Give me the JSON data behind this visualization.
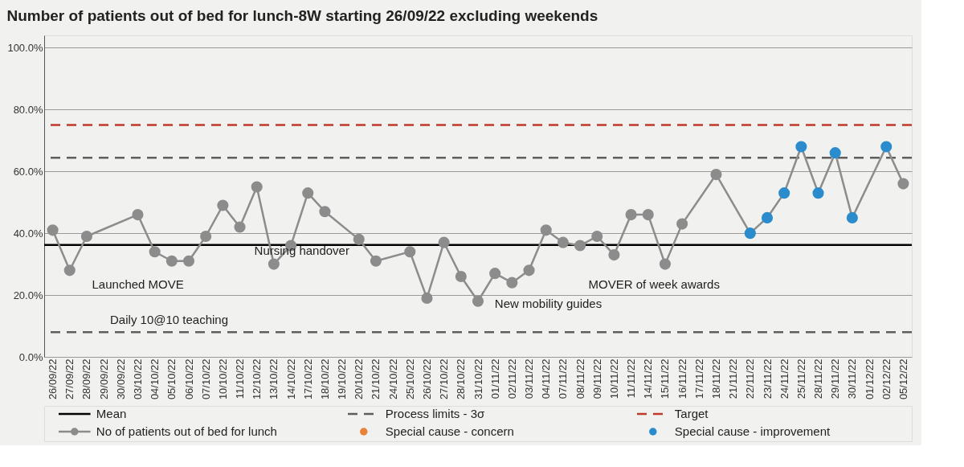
{
  "chart_data": {
    "type": "line",
    "title": "Number of patients out of bed for lunch-8W starting 26/09/22 excluding weekends",
    "categories": [
      "26/09/22",
      "27/09/22",
      "28/09/22",
      "29/09/22",
      "30/09/22",
      "03/10/22",
      "04/10/22",
      "05/10/22",
      "06/10/22",
      "07/10/22",
      "10/10/22",
      "11/10/22",
      "12/10/22",
      "13/10/22",
      "14/10/22",
      "17/10/22",
      "18/10/22",
      "19/10/22",
      "20/10/22",
      "21/10/22",
      "24/10/22",
      "25/10/22",
      "26/10/22",
      "27/10/22",
      "28/10/22",
      "31/10/22",
      "01/11/22",
      "02/11/22",
      "03/11/22",
      "04/11/22",
      "07/11/22",
      "08/11/22",
      "09/11/22",
      "10/11/22",
      "11/11/22",
      "14/11/22",
      "15/11/22",
      "16/11/22",
      "17/11/22",
      "18/11/22",
      "21/11/22",
      "22/11/22",
      "23/11/22",
      "24/11/22",
      "25/11/22",
      "28/11/22",
      "29/11/22",
      "30/11/22",
      "01/12/22",
      "02/12/22",
      "05/12/22"
    ],
    "series": [
      {
        "name": "No of patients out of bed for lunch",
        "color": "#8c8c8c",
        "values": [
          41,
          28,
          39,
          null,
          null,
          46,
          34,
          31,
          31,
          39,
          49,
          42,
          55,
          30,
          36,
          53,
          47,
          null,
          38,
          31,
          null,
          34,
          19,
          37,
          26,
          18,
          27,
          24,
          28,
          41,
          37,
          36,
          39,
          33,
          46,
          46,
          30,
          43,
          null,
          59,
          null,
          40,
          45,
          53,
          68,
          53,
          66,
          45,
          null,
          68,
          56
        ],
        "colors": [
          "#8c8c8c",
          "#8c8c8c",
          "#8c8c8c",
          "#8c8c8c",
          "#8c8c8c",
          "#8c8c8c",
          "#8c8c8c",
          "#8c8c8c",
          "#8c8c8c",
          "#8c8c8c",
          "#8c8c8c",
          "#8c8c8c",
          "#8c8c8c",
          "#8c8c8c",
          "#8c8c8c",
          "#8c8c8c",
          "#8c8c8c",
          "#8c8c8c",
          "#8c8c8c",
          "#8c8c8c",
          "#8c8c8c",
          "#8c8c8c",
          "#8c8c8c",
          "#8c8c8c",
          "#8c8c8c",
          "#8c8c8c",
          "#8c8c8c",
          "#8c8c8c",
          "#8c8c8c",
          "#8c8c8c",
          "#8c8c8c",
          "#8c8c8c",
          "#8c8c8c",
          "#8c8c8c",
          "#8c8c8c",
          "#8c8c8c",
          "#8c8c8c",
          "#8c8c8c",
          "#8c8c8c",
          "#8c8c8c",
          "#8c8c8c",
          "#2a8ccc",
          "#2a8ccc",
          "#2a8ccc",
          "#2a8ccc",
          "#2a8ccc",
          "#2a8ccc",
          "#2a8ccc",
          "#8c8c8c",
          "#2a8ccc",
          "#8c8c8c"
        ]
      },
      {
        "name": "Special cause - concern",
        "type": "scatter",
        "color": "#e8823a",
        "values": [
          null,
          null,
          null,
          null,
          null,
          null,
          null,
          null,
          null,
          null,
          null,
          null,
          null,
          null,
          null,
          null,
          null,
          null,
          null,
          null,
          null,
          null,
          null,
          null,
          null,
          null,
          null,
          null,
          null,
          null,
          null,
          null,
          null,
          null,
          null,
          null,
          null,
          null,
          null,
          null,
          null,
          null,
          null,
          null,
          null,
          null,
          null,
          null,
          null,
          null,
          null
        ]
      },
      {
        "name": "Special cause - improvement",
        "type": "scatter",
        "color": "#2a8ccc",
        "values": [
          null,
          null,
          null,
          null,
          null,
          null,
          null,
          null,
          null,
          null,
          null,
          null,
          null,
          null,
          null,
          null,
          null,
          null,
          null,
          null,
          null,
          null,
          null,
          null,
          null,
          null,
          null,
          null,
          null,
          null,
          null,
          null,
          null,
          null,
          null,
          null,
          null,
          null,
          null,
          null,
          null,
          null,
          null,
          null,
          null,
          null,
          null,
          null,
          null,
          null,
          null
        ]
      }
    ],
    "ref_lines": [
      {
        "axis": "y",
        "value": 36.2,
        "label": "Mean",
        "color": "#000000",
        "line_style": "solid"
      },
      {
        "axis": "y",
        "value": 64.4,
        "label": "Process limits - 3σ",
        "color": "#5e5e5e",
        "line_style": "dashed"
      },
      {
        "axis": "y",
        "value": 8.0,
        "color": "#5e5e5e",
        "line_style": "dashed"
      },
      {
        "axis": "y",
        "value": 75,
        "label": "Target",
        "color": "#c0392b",
        "line_style": "dashed"
      }
    ],
    "annotations": [
      "Launched MOVE",
      "Daily 10@10 teaching",
      "Nursing handover",
      "New mobility guides",
      "MOVER of week awards"
    ],
    "ylim": [
      0,
      104
    ],
    "yticks": [
      {
        "value": 0,
        "label": "0.0%"
      },
      {
        "value": 20,
        "label": "20.0%"
      },
      {
        "value": 40,
        "label": "40.0%"
      },
      {
        "value": 60,
        "label": "60.0%"
      },
      {
        "value": 80,
        "label": "80.0%"
      },
      {
        "value": 100,
        "label": "100.0%"
      }
    ],
    "grid": "y",
    "legend": "bottom",
    "marker": "circle",
    "line_style": "solid"
  }
}
